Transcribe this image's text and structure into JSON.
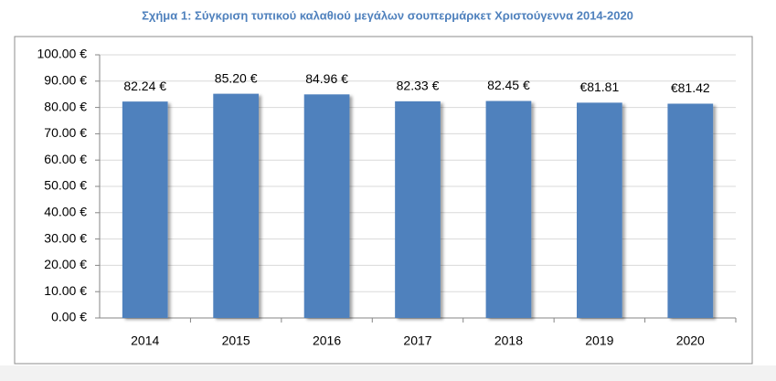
{
  "chart_data": {
    "type": "bar",
    "title": "Σχήμα 1: Σύγκριση τυπικού καλαθιού μεγάλων σουπερμάρκετ Χριστούγεννα 2014-2020",
    "categories": [
      "2014",
      "2015",
      "2016",
      "2017",
      "2018",
      "2019",
      "2020"
    ],
    "values": [
      82.24,
      85.2,
      84.96,
      82.33,
      82.45,
      81.81,
      81.42
    ],
    "value_labels": [
      "82.24 €",
      "85.20 €",
      "84.96 €",
      "82.33 €",
      "82.45 €",
      "€81.81",
      "€81.42"
    ],
    "color": "#4f81bd",
    "ylim": [
      0,
      100
    ],
    "yticks": [
      {
        "value": 0,
        "label": "0.00 €"
      },
      {
        "value": 10,
        "label": "10.00 €"
      },
      {
        "value": 20,
        "label": "20.00 €"
      },
      {
        "value": 30,
        "label": "30.00 €"
      },
      {
        "value": 40,
        "label": "40.00 €"
      },
      {
        "value": 50,
        "label": "50.00 €"
      },
      {
        "value": 60,
        "label": "60.00 €"
      },
      {
        "value": 70,
        "label": "70.00 €"
      },
      {
        "value": 80,
        "label": "80.00 €"
      },
      {
        "value": 90,
        "label": "90.00 €"
      },
      {
        "value": 100,
        "label": "100.00 €"
      }
    ],
    "grid": true
  }
}
